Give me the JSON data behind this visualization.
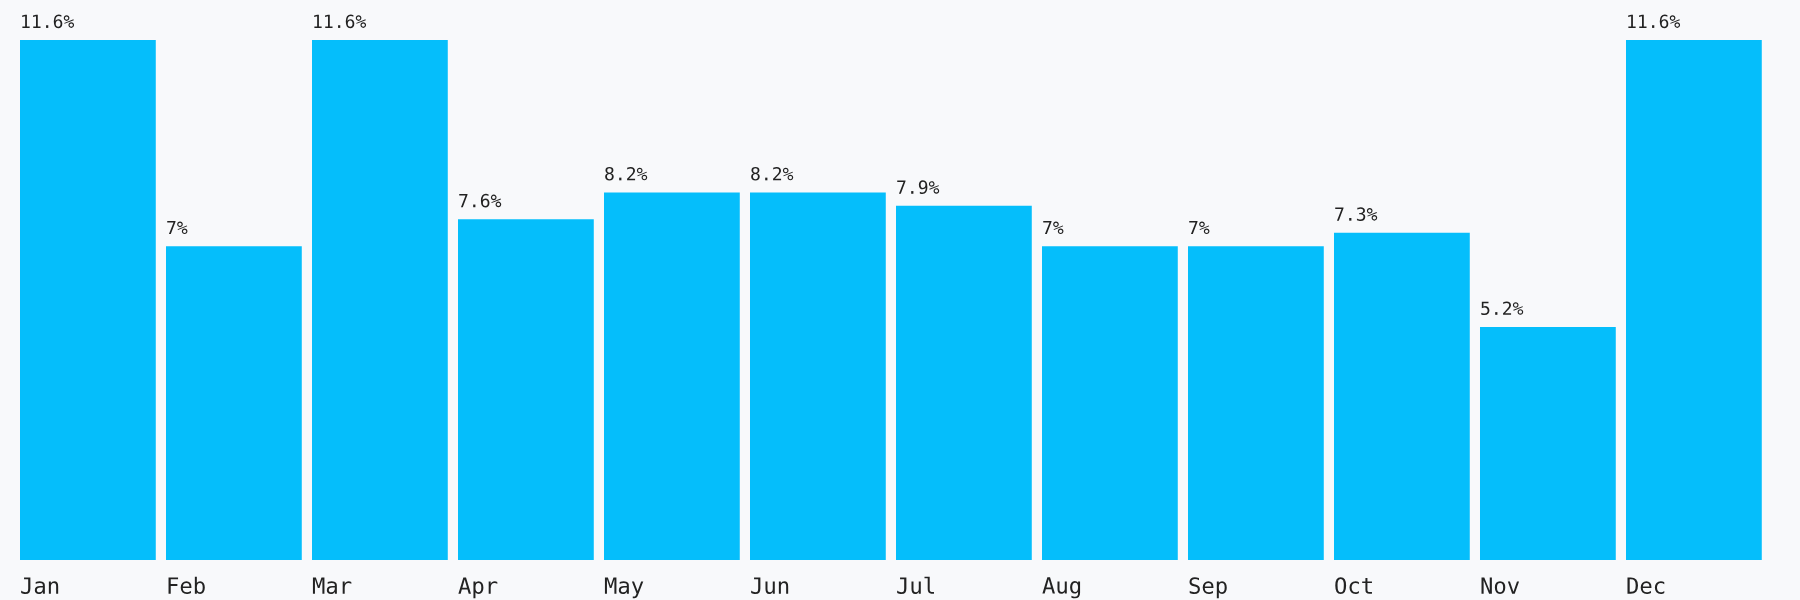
{
  "chart_data": {
    "type": "bar",
    "categories": [
      "Jan",
      "Feb",
      "Mar",
      "Apr",
      "May",
      "Jun",
      "Jul",
      "Aug",
      "Sep",
      "Oct",
      "Nov",
      "Dec"
    ],
    "values": [
      11.6,
      7,
      11.6,
      7.6,
      8.2,
      8.2,
      7.9,
      7,
      7,
      7.3,
      5.2,
      11.6
    ],
    "value_labels": [
      "11.6%",
      "7%",
      "11.6%",
      "7.6%",
      "8.2%",
      "8.2%",
      "7.9%",
      "7%",
      "7%",
      "7.3%",
      "5.2%",
      "11.6%"
    ],
    "color": "#05befb"
  }
}
